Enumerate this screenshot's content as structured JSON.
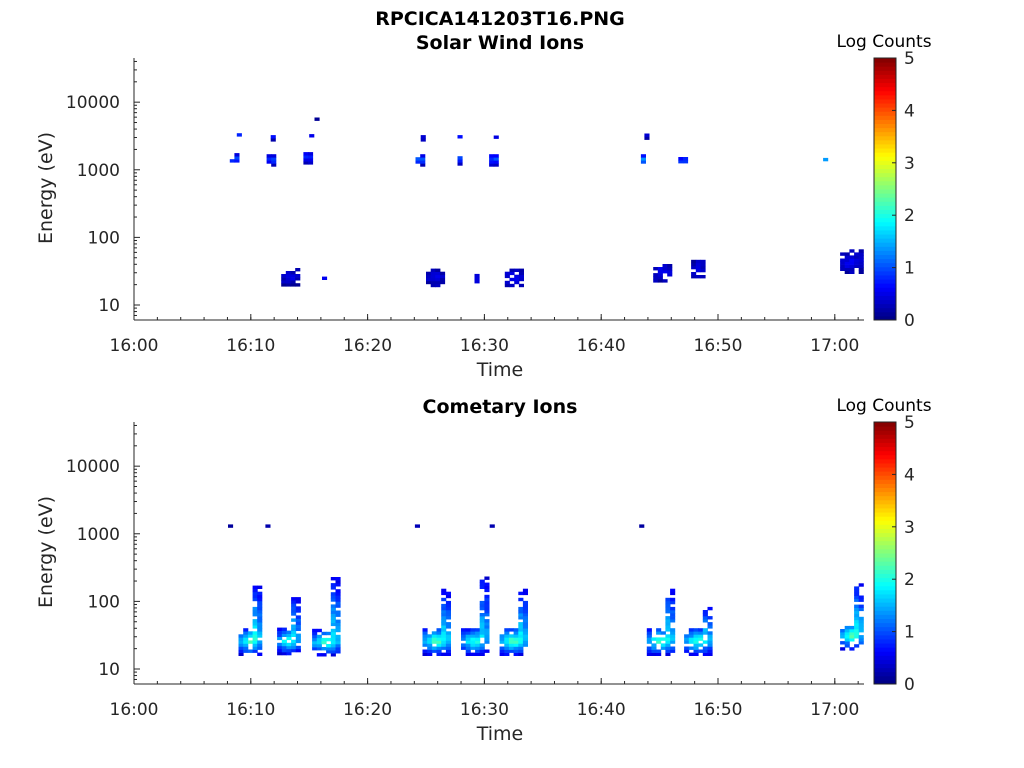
{
  "figure_title": "RPCICA141203T16.PNG",
  "colorbar": {
    "title": "Log Counts",
    "ticks": [
      "0",
      "1",
      "2",
      "3",
      "4",
      "5"
    ],
    "range": [
      0,
      5
    ],
    "colormap": "jet"
  },
  "chart_data": [
    {
      "type": "heatmap",
      "title": "Solar Wind Ions",
      "xlabel": "Time",
      "ylabel": "Energy (eV)",
      "x_ticks": [
        "16:00",
        "16:10",
        "16:20",
        "16:30",
        "16:40",
        "16:50",
        "17:00"
      ],
      "x_range_minutes": [
        0,
        62.5
      ],
      "y_scale": "log",
      "y_range": [
        6,
        45000
      ],
      "y_ticks": [
        "10",
        "100",
        "1000",
        "10000"
      ],
      "clusters": [
        {
          "t": 8.6,
          "e": 1400,
          "level": 1.3,
          "width": 0.8,
          "spread": 0.08
        },
        {
          "t": 9.0,
          "e": 3100,
          "level": 0.6,
          "width": 0.4,
          "spread": 0.04
        },
        {
          "t": 11.7,
          "e": 1350,
          "level": 1.3,
          "width": 0.7,
          "spread": 0.08
        },
        {
          "t": 12.0,
          "e": 2900,
          "level": 0.5,
          "width": 0.6,
          "spread": 0.04
        },
        {
          "t": 13.4,
          "e": 25,
          "level": 0.4,
          "width": 1.6,
          "spread": 0.12
        },
        {
          "t": 14.9,
          "e": 1450,
          "level": 1.1,
          "width": 0.8,
          "spread": 0.08
        },
        {
          "t": 15.3,
          "e": 3000,
          "level": 0.5,
          "width": 0.6,
          "spread": 0.04
        },
        {
          "t": 15.6,
          "e": 5600,
          "level": 0.3,
          "width": 0.3,
          "spread": 0.02
        },
        {
          "t": 16.3,
          "e": 26,
          "level": 1.5,
          "width": 0.4,
          "spread": 0.04
        },
        {
          "t": 24.5,
          "e": 1350,
          "level": 1.5,
          "width": 0.8,
          "spread": 0.08
        },
        {
          "t": 24.9,
          "e": 2900,
          "level": 0.5,
          "width": 0.7,
          "spread": 0.04
        },
        {
          "t": 25.8,
          "e": 25,
          "level": 0.4,
          "width": 1.6,
          "spread": 0.13
        },
        {
          "t": 27.7,
          "e": 1400,
          "level": 1.5,
          "width": 0.8,
          "spread": 0.08
        },
        {
          "t": 27.9,
          "e": 2900,
          "level": 0.5,
          "width": 0.4,
          "spread": 0.04
        },
        {
          "t": 29.4,
          "e": 24,
          "level": 0.4,
          "width": 0.5,
          "spread": 0.1
        },
        {
          "t": 30.8,
          "e": 1350,
          "level": 1.4,
          "width": 0.8,
          "spread": 0.08
        },
        {
          "t": 31.0,
          "e": 2800,
          "level": 0.4,
          "width": 0.4,
          "spread": 0.03
        },
        {
          "t": 32.5,
          "e": 25,
          "level": 0.5,
          "width": 1.5,
          "spread": 0.13
        },
        {
          "t": 43.7,
          "e": 1350,
          "level": 1.4,
          "width": 0.6,
          "spread": 0.08
        },
        {
          "t": 43.9,
          "e": 3000,
          "level": 0.5,
          "width": 0.4,
          "spread": 0.03
        },
        {
          "t": 45.3,
          "e": 30,
          "level": 0.5,
          "width": 1.7,
          "spread": 0.14
        },
        {
          "t": 47.0,
          "e": 1300,
          "level": 1.3,
          "width": 0.8,
          "spread": 0.06
        },
        {
          "t": 47.6,
          "e": 55,
          "level": 0.4,
          "width": 0.3,
          "spread": 0.02
        },
        {
          "t": 48.3,
          "e": 33,
          "level": 0.4,
          "width": 1.2,
          "spread": 0.12
        },
        {
          "t": 59.2,
          "e": 1400,
          "level": 1.5,
          "width": 0.4,
          "spread": 0.06
        },
        {
          "t": 61.4,
          "e": 42,
          "level": 0.5,
          "width": 1.9,
          "spread": 0.16
        }
      ]
    },
    {
      "type": "heatmap",
      "title": "Cometary Ions",
      "xlabel": "Time",
      "ylabel": "Energy (eV)",
      "x_ticks": [
        "16:00",
        "16:10",
        "16:20",
        "16:30",
        "16:40",
        "16:50",
        "17:00"
      ],
      "x_range_minutes": [
        0,
        62.5
      ],
      "y_scale": "log",
      "y_range": [
        6,
        45000
      ],
      "y_ticks": [
        "10",
        "100",
        "1000",
        "10000"
      ],
      "clusters": [
        {
          "t": 8.3,
          "e": 1300,
          "level": 0.3,
          "width": 0.5,
          "spread": 0.02
        },
        {
          "t": 11.5,
          "e": 1300,
          "level": 0.3,
          "width": 0.5,
          "spread": 0.02
        },
        {
          "t": 24.3,
          "e": 1300,
          "level": 0.3,
          "width": 0.5,
          "spread": 0.02
        },
        {
          "t": 30.7,
          "e": 1300,
          "level": 0.3,
          "width": 0.5,
          "spread": 0.02
        },
        {
          "t": 43.5,
          "e": 1300,
          "level": 0.3,
          "width": 0.5,
          "spread": 0.02
        },
        {
          "t": 9.9,
          "e": 25,
          "level": 2.3,
          "width": 1.9,
          "spread": 0.2,
          "tail": 170
        },
        {
          "t": 13.2,
          "e": 25,
          "level": 2.1,
          "width": 1.9,
          "spread": 0.19,
          "tail": 120
        },
        {
          "t": 16.4,
          "e": 24,
          "level": 2.2,
          "width": 2.3,
          "spread": 0.19,
          "tail": 240
        },
        {
          "t": 25.8,
          "e": 25,
          "level": 2.3,
          "width": 2.2,
          "spread": 0.2,
          "tail": 150
        },
        {
          "t": 29.1,
          "e": 25,
          "level": 2.1,
          "width": 2.2,
          "spread": 0.2,
          "tail": 220
        },
        {
          "t": 32.4,
          "e": 25,
          "level": 2.3,
          "width": 2.2,
          "spread": 0.2,
          "tail": 150
        },
        {
          "t": 45.0,
          "e": 25,
          "level": 2.3,
          "width": 2.2,
          "spread": 0.2,
          "tail": 150
        },
        {
          "t": 48.2,
          "e": 25,
          "level": 2.2,
          "width": 2.2,
          "spread": 0.2,
          "tail": 80
        },
        {
          "t": 61.4,
          "e": 30,
          "level": 2.3,
          "width": 1.9,
          "spread": 0.2,
          "tail": 180
        }
      ]
    }
  ]
}
